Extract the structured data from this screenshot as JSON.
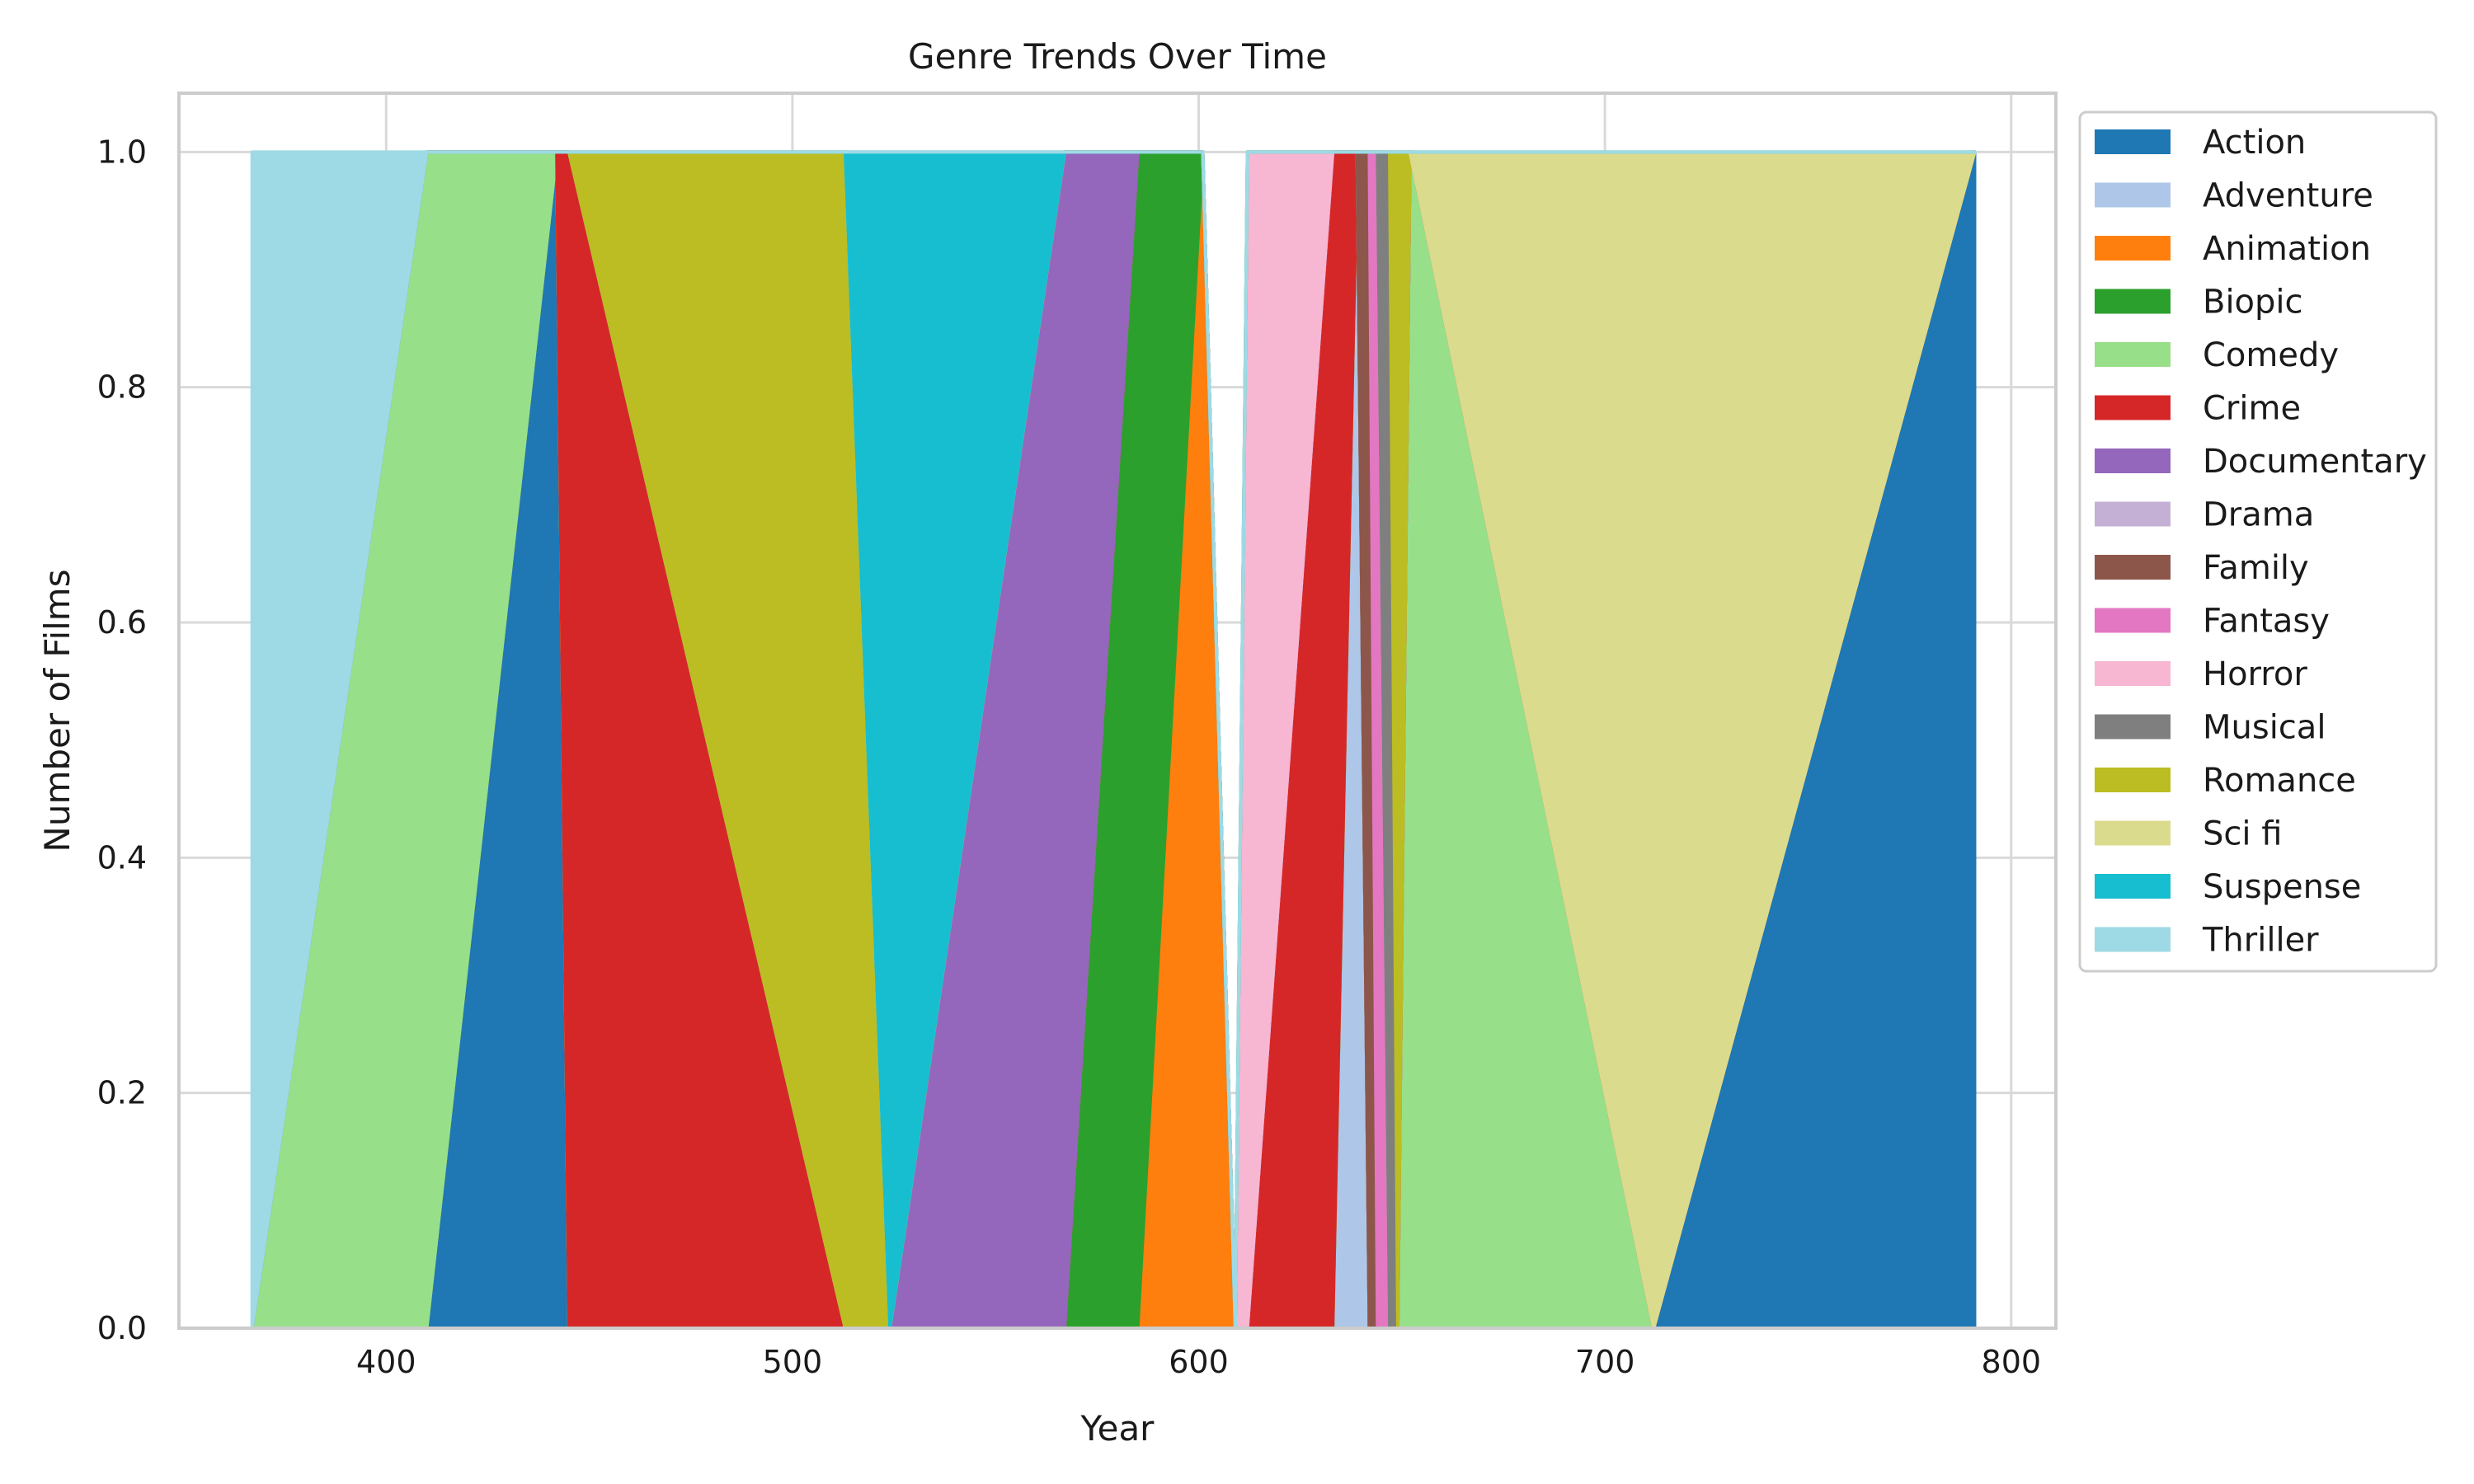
{
  "chart_data": {
    "type": "area",
    "title": "Genre Trends Over Time",
    "xlabel": "Year",
    "ylabel": "Number of Films",
    "xlim": [
      349,
      811
    ],
    "ylim": [
      0,
      1.05
    ],
    "xticks": [
      400,
      500,
      600,
      700,
      800
    ],
    "yticks": [
      0.0,
      0.2,
      0.4,
      0.6,
      0.8,
      1.0
    ],
    "xtick_labels": [
      "400",
      "500",
      "600",
      "700",
      "800"
    ],
    "ytick_labels": [
      "0.0",
      "0.2",
      "0.4",
      "0.6",
      "0.8",
      "1.0"
    ],
    "grid": true,
    "legend_position": "outside-right-top",
    "x": [
      367,
      410,
      442,
      445,
      513,
      524,
      567,
      585,
      601,
      609,
      612,
      633,
      639,
      642,
      644,
      647,
      649,
      652,
      712,
      791
    ],
    "series": [
      {
        "name": "Action",
        "color": "#1f77b4",
        "values": [
          0,
          0,
          1,
          0,
          0,
          0,
          0,
          0,
          0,
          0,
          0,
          0,
          0,
          0,
          0,
          0,
          0,
          0,
          0,
          1
        ]
      },
      {
        "name": "Adventure",
        "color": "#aec7e8",
        "values": [
          0,
          0,
          0,
          0,
          0,
          0,
          0,
          0,
          0,
          0,
          0,
          0,
          1,
          0,
          0,
          0,
          0,
          0,
          0,
          0
        ]
      },
      {
        "name": "Animation",
        "color": "#ff7f0e",
        "values": [
          0,
          0,
          0,
          0,
          0,
          0,
          0,
          0,
          1,
          0,
          0,
          0,
          0,
          0,
          0,
          0,
          0,
          0,
          0,
          0
        ]
      },
      {
        "name": "Biopic",
        "color": "#2ca02c",
        "values": [
          0,
          0,
          0,
          0,
          0,
          0,
          0,
          1,
          0,
          0,
          0,
          0,
          0,
          0,
          0,
          0,
          0,
          0,
          0,
          0
        ]
      },
      {
        "name": "Comedy",
        "color": "#98df8a",
        "values": [
          0,
          1,
          0,
          0,
          0,
          0,
          0,
          0,
          0,
          0,
          0,
          0,
          0,
          0,
          0,
          0,
          0,
          1,
          0,
          0
        ]
      },
      {
        "name": "Crime",
        "color": "#d62728",
        "values": [
          0,
          0,
          0,
          1,
          0,
          0,
          0,
          0,
          0,
          0,
          0,
          1,
          0,
          0,
          0,
          0,
          0,
          0,
          0,
          0
        ]
      },
      {
        "name": "Documentary",
        "color": "#9467bd",
        "values": [
          0,
          0,
          0,
          0,
          0,
          0,
          1,
          0,
          0,
          0,
          0,
          0,
          0,
          0,
          0,
          0,
          0,
          0,
          0,
          0
        ]
      },
      {
        "name": "Drama",
        "color": "#c5b0d5",
        "values": [
          0,
          0,
          0,
          0,
          0,
          0,
          0,
          0,
          0,
          0,
          0,
          0,
          0,
          0,
          0,
          0,
          0,
          0,
          0,
          0
        ]
      },
      {
        "name": "Family",
        "color": "#8c564b",
        "values": [
          0,
          0,
          0,
          0,
          0,
          0,
          0,
          0,
          0,
          0,
          0,
          0,
          0,
          1,
          0,
          0,
          0,
          0,
          0,
          0
        ]
      },
      {
        "name": "Fantasy",
        "color": "#e377c2",
        "values": [
          0,
          0,
          0,
          0,
          0,
          0,
          0,
          0,
          0,
          0,
          0,
          0,
          0,
          0,
          1,
          0,
          0,
          0,
          0,
          0
        ]
      },
      {
        "name": "Horror",
        "color": "#f7b6d2",
        "values": [
          0,
          0,
          0,
          0,
          0,
          0,
          0,
          0,
          0,
          0,
          1,
          0,
          0,
          0,
          0,
          0,
          0,
          0,
          0,
          0
        ]
      },
      {
        "name": "Musical",
        "color": "#7f7f7f",
        "values": [
          0,
          0,
          0,
          0,
          0,
          0,
          0,
          0,
          0,
          0,
          0,
          0,
          0,
          0,
          0,
          1,
          0,
          0,
          0,
          0
        ]
      },
      {
        "name": "Romance",
        "color": "#bcbd22",
        "values": [
          0,
          0,
          0,
          0,
          1,
          0,
          0,
          0,
          0,
          0,
          0,
          0,
          0,
          0,
          0,
          0,
          1,
          0,
          0,
          0
        ]
      },
      {
        "name": "Sci fi",
        "color": "#dbdb8d",
        "values": [
          0,
          0,
          0,
          0,
          0,
          0,
          0,
          0,
          0,
          0,
          0,
          0,
          0,
          0,
          0,
          0,
          0,
          0,
          1,
          0
        ]
      },
      {
        "name": "Suspense",
        "color": "#17becf",
        "values": [
          0,
          0,
          0,
          0,
          0,
          1,
          0,
          0,
          0,
          0,
          0,
          0,
          0,
          0,
          0,
          0,
          0,
          0,
          0,
          0
        ]
      },
      {
        "name": "Thriller",
        "color": "#9edae5",
        "values": [
          1,
          0,
          0,
          0,
          0,
          0,
          0,
          0,
          0,
          0,
          0,
          0,
          0,
          0,
          0,
          0,
          0,
          0,
          0,
          0
        ]
      }
    ]
  }
}
